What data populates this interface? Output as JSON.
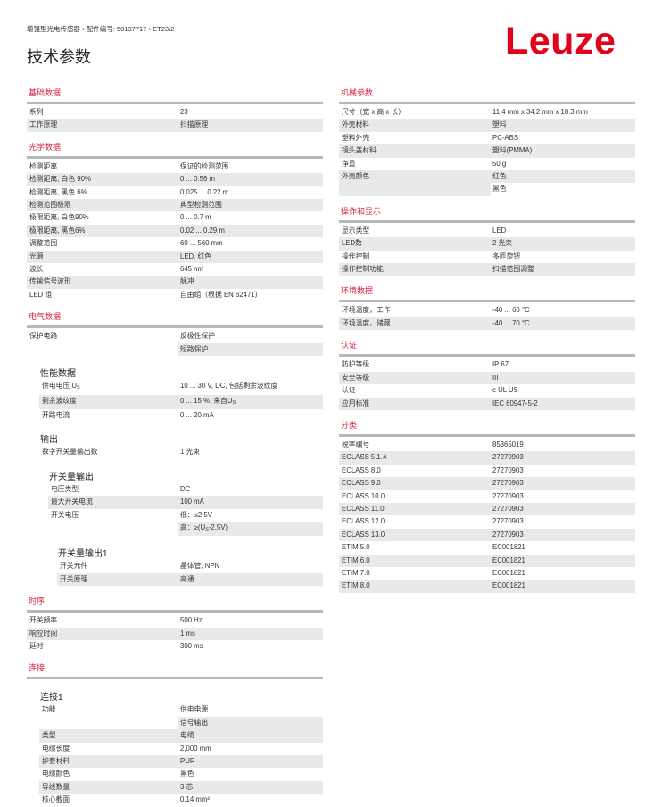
{
  "header": {
    "breadcrumb": "增强型光电传感器 • 配件编号: 50137717 • ET23/2",
    "title": "技术参数",
    "logo": "Leuze",
    "brand_color": "#e2001a"
  },
  "left": [
    {
      "title": "基础数据",
      "items": [
        {
          "t": "row",
          "label": "系列",
          "values": [
            "23"
          ]
        },
        {
          "t": "row",
          "label": "工作原理",
          "values": [
            "扫描原理"
          ]
        }
      ]
    },
    {
      "title": "光学数据",
      "items": [
        {
          "t": "row",
          "label": "检测距离",
          "values": [
            "保证的检测范围"
          ]
        },
        {
          "t": "row",
          "label": "检测距离, 白色 90%",
          "values": [
            "0 ... 0.56 m"
          ]
        },
        {
          "t": "row",
          "label": "检测距离, 黑色 6%",
          "values": [
            "0.025 ... 0.22 m"
          ]
        },
        {
          "t": "row",
          "label": "检测范围极限",
          "values": [
            "典型检测范围"
          ]
        },
        {
          "t": "row",
          "label": "极限距离, 白色90%",
          "values": [
            "0 ... 0.7 m"
          ]
        },
        {
          "t": "row",
          "label": "极限距离, 黑色6%",
          "values": [
            "0.02 ... 0.29 m"
          ]
        },
        {
          "t": "row",
          "label": "调整范围",
          "values": [
            "60 ... 560 mm"
          ]
        },
        {
          "t": "row",
          "label": "光源",
          "values": [
            "LED, 红色"
          ]
        },
        {
          "t": "row",
          "label": "波长",
          "values": [
            "645 nm"
          ]
        },
        {
          "t": "row",
          "label": "传输信号波形",
          "values": [
            "脉冲"
          ]
        },
        {
          "t": "row",
          "label": "LED 组",
          "values": [
            "自由组（根据 EN 62471）"
          ]
        }
      ]
    },
    {
      "title": "电气数据",
      "items": [
        {
          "t": "row",
          "label": "保护电路",
          "values": [
            "反极性保护",
            "短路保护"
          ]
        },
        {
          "t": "sub",
          "label": "性能数据",
          "indent": 1
        },
        {
          "t": "row",
          "indent": 1,
          "label": {
            "pre": "供电电压 U",
            "sub": "S",
            "post": ""
          },
          "values": [
            "10 ... 30 V, DC, 包括剩余波纹度"
          ]
        },
        {
          "t": "row",
          "indent": 1,
          "label": "剩余波纹度",
          "values": [
            {
              "pre": "0 ... 15 %, 来自U",
              "sub": "S",
              "post": ""
            }
          ]
        },
        {
          "t": "row",
          "indent": 1,
          "label": "开路电流",
          "values": [
            "0 ... 20 mA"
          ]
        },
        {
          "t": "sub",
          "label": "输出",
          "indent": 1
        },
        {
          "t": "row",
          "indent": 1,
          "label": "数字开关量输出数",
          "values": [
            "1 光束"
          ]
        },
        {
          "t": "sub",
          "label": "开关量输出",
          "indent": 2
        },
        {
          "t": "row",
          "indent": 2,
          "label": "电压类型",
          "values": [
            "DC"
          ]
        },
        {
          "t": "row",
          "indent": 2,
          "label": "最大开关电流",
          "values": [
            "100 mA"
          ]
        },
        {
          "t": "row",
          "indent": 2,
          "label": "开关电压",
          "values": [
            "低：≤2.5V",
            {
              "pre": "高：≥(U",
              "sub": "S",
              "post": "-2.5V)"
            }
          ]
        },
        {
          "t": "sub",
          "label": "开关量输出1",
          "indent": 3
        },
        {
          "t": "row",
          "indent": 3,
          "label": "开关元件",
          "values": [
            "晶体管, NPN"
          ]
        },
        {
          "t": "row",
          "indent": 3,
          "label": "开关原理",
          "values": [
            "亮通"
          ]
        }
      ]
    },
    {
      "title": "时序",
      "items": [
        {
          "t": "row",
          "label": "开关频率",
          "values": [
            "500 Hz"
          ]
        },
        {
          "t": "row",
          "label": "响应时间",
          "values": [
            "1 ms"
          ]
        },
        {
          "t": "row",
          "label": "延时",
          "values": [
            "300 ms"
          ]
        }
      ]
    },
    {
      "title": "连接",
      "items": [
        {
          "t": "sub",
          "label": "连接1",
          "indent": 1
        },
        {
          "t": "row",
          "indent": 1,
          "label": "功能",
          "values": [
            "供电电源",
            "信号输出"
          ]
        },
        {
          "t": "row",
          "indent": 1,
          "label": "类型",
          "values": [
            "电缆"
          ]
        },
        {
          "t": "row",
          "indent": 1,
          "label": "电缆长度",
          "values": [
            "2,000 mm"
          ]
        },
        {
          "t": "row",
          "indent": 1,
          "label": "护套材料",
          "values": [
            "PUR"
          ]
        },
        {
          "t": "row",
          "indent": 1,
          "label": "电缆颜色",
          "values": [
            "黑色"
          ]
        },
        {
          "t": "row",
          "indent": 1,
          "label": "导线数量",
          "values": [
            "3 芯"
          ]
        },
        {
          "t": "row",
          "indent": 1,
          "label": "核心截面",
          "values": [
            "0.14 mm²"
          ]
        }
      ]
    }
  ],
  "right": [
    {
      "title": "机械参数",
      "items": [
        {
          "t": "row",
          "label": "尺寸（宽 x 高 x 长）",
          "values": [
            "11.4 mm x 34.2 mm x 18.3 mm"
          ]
        },
        {
          "t": "row",
          "label": "外壳材料",
          "values": [
            "塑料"
          ]
        },
        {
          "t": "row",
          "label": "塑料外壳",
          "values": [
            "PC-ABS"
          ]
        },
        {
          "t": "row",
          "label": "镜头盖材料",
          "values": [
            "塑料(PMMA)"
          ]
        },
        {
          "t": "row",
          "label": "净重",
          "values": [
            "50 g"
          ]
        },
        {
          "t": "row",
          "label": "外壳颜色",
          "values": [
            "红色",
            "黑色"
          ]
        }
      ]
    },
    {
      "title": "操作和显示",
      "items": [
        {
          "t": "row",
          "label": "显示类型",
          "values": [
            "LED"
          ]
        },
        {
          "t": "row",
          "label": "LED数",
          "values": [
            "2 光束"
          ]
        },
        {
          "t": "row",
          "label": "操作控制",
          "values": [
            "多匝旋钮"
          ]
        },
        {
          "t": "row",
          "label": "操作控制功能",
          "values": [
            "扫描范围调整"
          ]
        }
      ]
    },
    {
      "title": "环境数据",
      "items": [
        {
          "t": "row",
          "label": "环境温度，工作",
          "values": [
            "-40 ... 60 °C"
          ]
        },
        {
          "t": "row",
          "label": "环境温度，储藏",
          "values": [
            "-40 ... 70 °C"
          ]
        }
      ]
    },
    {
      "title": "认证",
      "items": [
        {
          "t": "row",
          "label": "防护等级",
          "values": [
            "IP 67"
          ]
        },
        {
          "t": "row",
          "label": "安全等级",
          "values": [
            "III"
          ]
        },
        {
          "t": "row",
          "label": "认证",
          "values": [
            "c UL US"
          ]
        },
        {
          "t": "row",
          "label": "应用标准",
          "values": [
            "IEC 60947-5-2"
          ]
        }
      ]
    },
    {
      "title": "分类",
      "items": [
        {
          "t": "row",
          "label": "税率编号",
          "values": [
            "85365019"
          ]
        },
        {
          "t": "row",
          "label": "ECLASS 5.1.4",
          "values": [
            "27270903"
          ]
        },
        {
          "t": "row",
          "label": "ECLASS 8.0",
          "values": [
            "27270903"
          ]
        },
        {
          "t": "row",
          "label": "ECLASS 9.0",
          "values": [
            "27270903"
          ]
        },
        {
          "t": "row",
          "label": "ECLASS 10.0",
          "values": [
            "27270903"
          ]
        },
        {
          "t": "row",
          "label": "ECLASS 11.0",
          "values": [
            "27270903"
          ]
        },
        {
          "t": "row",
          "label": "ECLASS 12.0",
          "values": [
            "27270903"
          ]
        },
        {
          "t": "row",
          "label": "ECLASS 13.0",
          "values": [
            "27270903"
          ]
        },
        {
          "t": "row",
          "label": "ETIM 5.0",
          "values": [
            "EC001821"
          ]
        },
        {
          "t": "row",
          "label": "ETIM 6.0",
          "values": [
            "EC001821"
          ]
        },
        {
          "t": "row",
          "label": "ETIM 7.0",
          "values": [
            "EC001821"
          ]
        },
        {
          "t": "row",
          "label": "ETIM 8.0",
          "values": [
            "EC001821"
          ]
        }
      ]
    }
  ]
}
